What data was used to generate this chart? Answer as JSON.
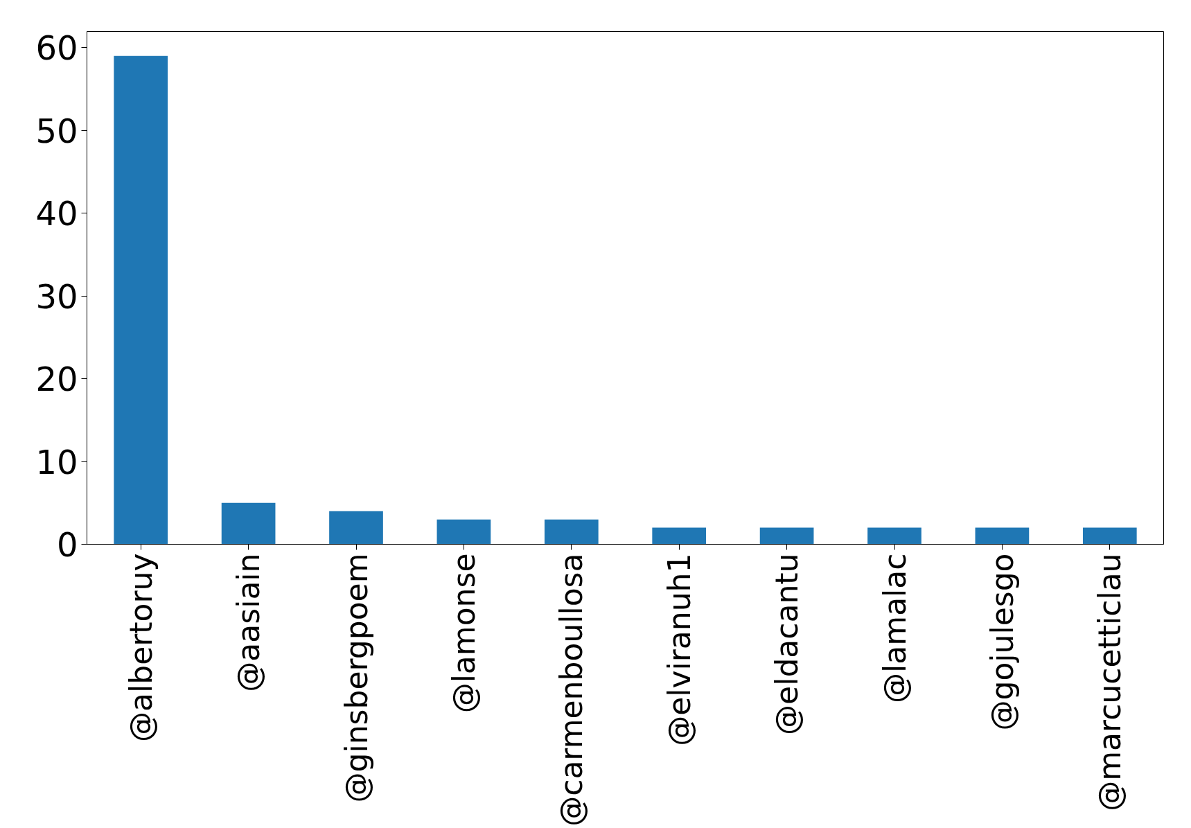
{
  "chart_data": {
    "type": "bar",
    "categories": [
      "@albertoruy",
      "@aasiain",
      "@ginsbergpoem",
      "@lamonse",
      "@carmenboullosa",
      "@elviranuh1",
      "@eldacantu",
      "@lamalac",
      "@gojulesgo",
      "@marcucetticlau"
    ],
    "values": [
      59,
      5,
      4,
      3,
      3,
      2,
      2,
      2,
      2,
      2
    ],
    "color": "#1f77b4",
    "ylim": [
      0,
      61.95
    ],
    "yticks": [
      0,
      10,
      20,
      30,
      40,
      50,
      60
    ],
    "grid": false
  }
}
